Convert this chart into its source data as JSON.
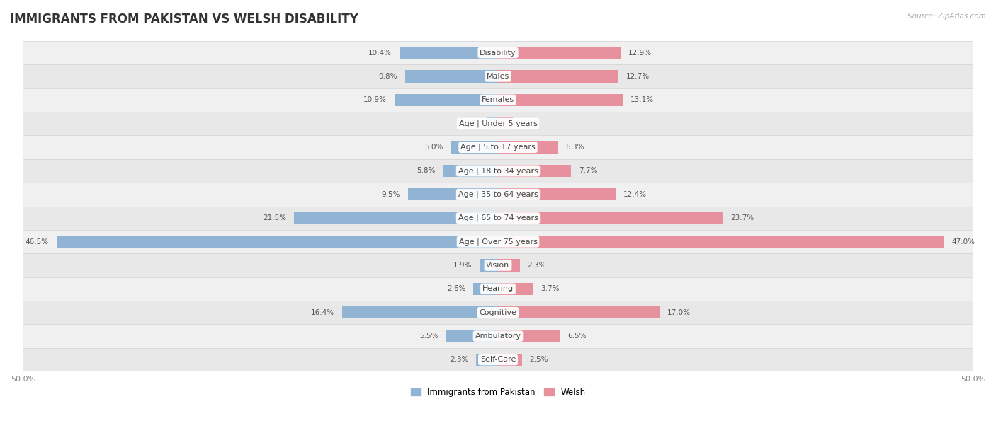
{
  "title": "IMMIGRANTS FROM PAKISTAN VS WELSH DISABILITY",
  "source": "Source: ZipAtlas.com",
  "categories": [
    "Disability",
    "Males",
    "Females",
    "Age | Under 5 years",
    "Age | 5 to 17 years",
    "Age | 18 to 34 years",
    "Age | 35 to 64 years",
    "Age | 65 to 74 years",
    "Age | Over 75 years",
    "Vision",
    "Hearing",
    "Cognitive",
    "Ambulatory",
    "Self-Care"
  ],
  "left_values": [
    10.4,
    9.8,
    10.9,
    1.1,
    5.0,
    5.8,
    9.5,
    21.5,
    46.5,
    1.9,
    2.6,
    16.4,
    5.5,
    2.3
  ],
  "right_values": [
    12.9,
    12.7,
    13.1,
    1.6,
    6.3,
    7.7,
    12.4,
    23.7,
    47.0,
    2.3,
    3.7,
    17.0,
    6.5,
    2.5
  ],
  "left_color": "#92b4d4",
  "right_color": "#e8919e",
  "axis_max": 50.0,
  "legend_left": "Immigrants from Pakistan",
  "legend_right": "Welsh",
  "row_bg_colors": [
    "#f0f0f0",
    "#e8e8e8"
  ],
  "title_fontsize": 12,
  "label_fontsize": 8,
  "value_fontsize": 7.5,
  "axis_label_fontsize": 8
}
